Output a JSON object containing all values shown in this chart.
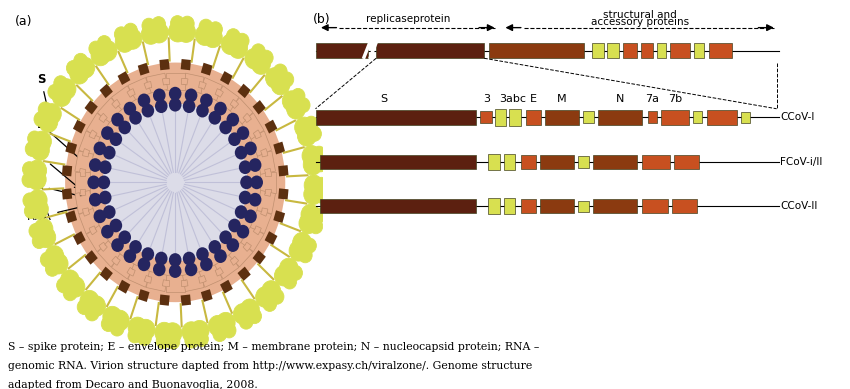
{
  "bg_color": "#ffffff",
  "label_a": "(a)",
  "label_b": "(b)",
  "caption_line1": "S – spike protein; E – envelope protein; M – membrane protein; N – nucleocapsid protein; RNA –",
  "caption_line2": "genomic RNA. Virion structure dapted from http://www.expasy.ch/viralzone/. Genome structure",
  "caption_line3": "adapted from Decaro and Buonavoglia, 2008.",
  "dark_brown": "#5c2010",
  "medium_brown": "#9b4a1a",
  "salmon": "#e8b090",
  "navy": "#252560",
  "yellow_green": "#d8e050",
  "orange_brown": "#c84820",
  "dark_red_brown": "#7a2808",
  "light_gray_inner": "#dcdce8",
  "spoke_color": "#c0c0d8",
  "spike_stem_color": "#c8b840",
  "spike_head_color": "#d8e050",
  "spike_head_edge": "#a0a030",
  "m_protein_color": "#e8b090",
  "m_protein_edge": "#c09070",
  "dark_sq_color": "#5c3010",
  "replicase_color": "#6b3010",
  "ref_s_color": "#8b3a10",
  "ref_dark_color": "#6b3010",
  "ccov1_s_color": "#9b4a18",
  "yellow_seg": "#d8e050",
  "orange_seg": "#c85020",
  "brown_seg": "#8b3a10"
}
